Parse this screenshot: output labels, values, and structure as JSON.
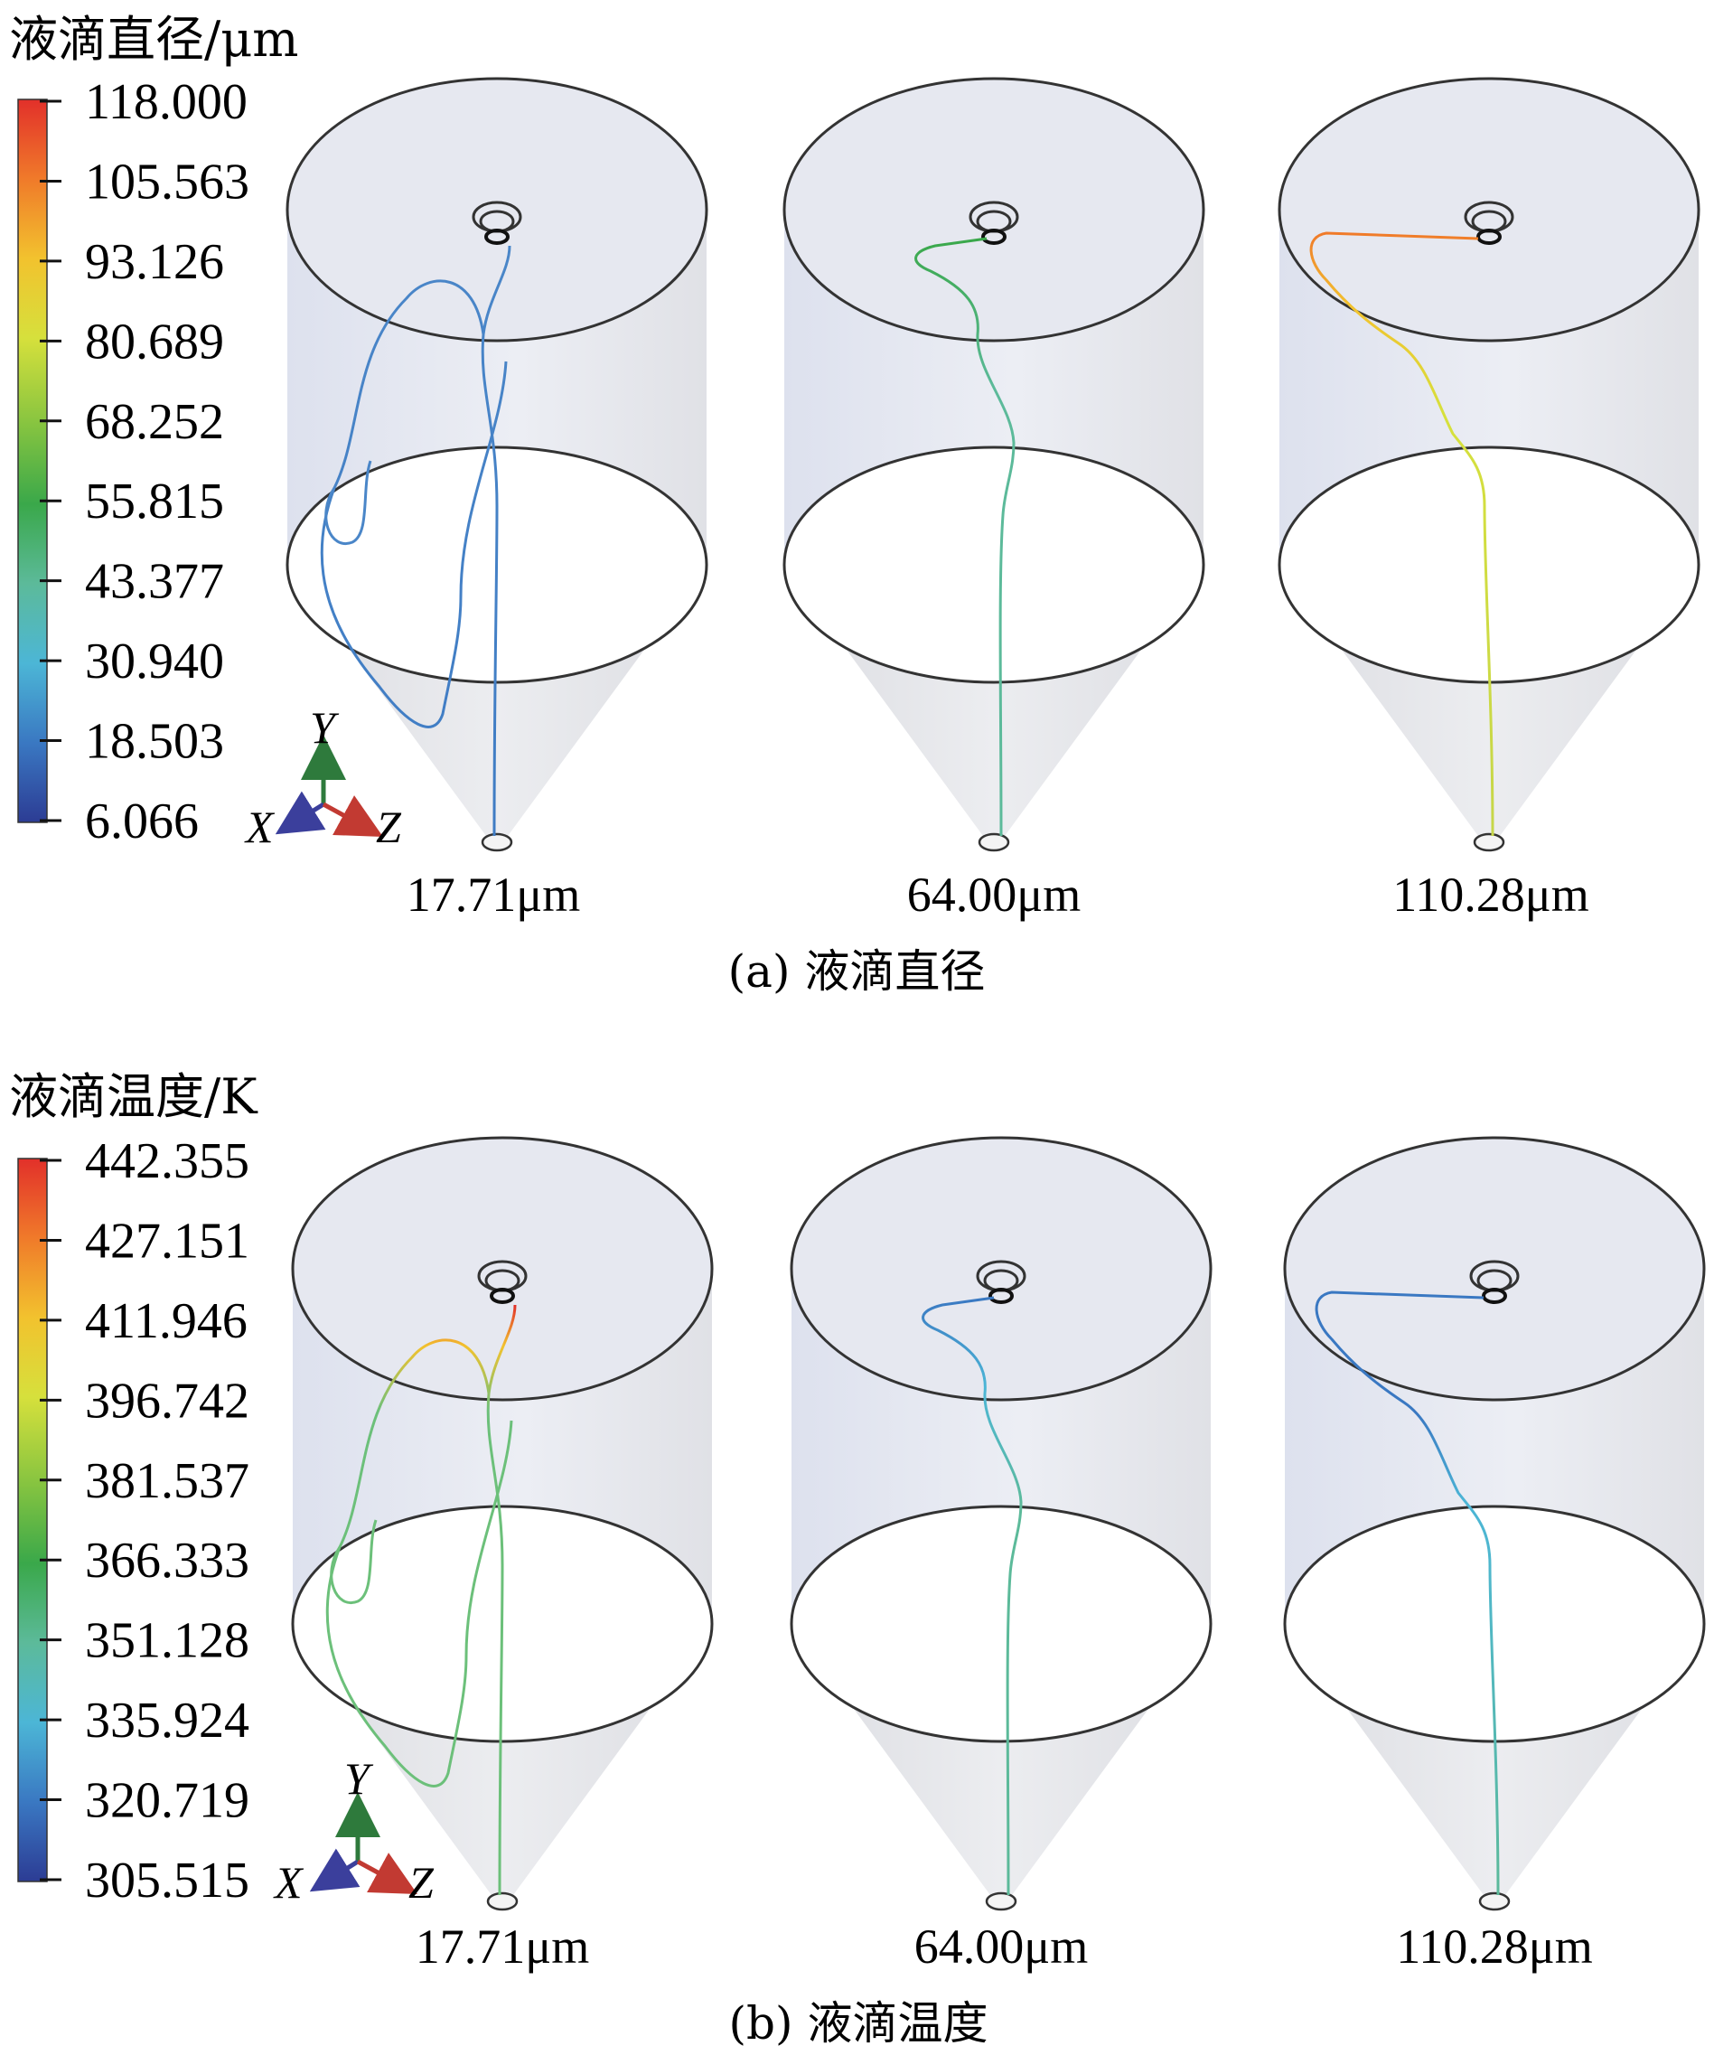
{
  "panels": [
    {
      "id": "a",
      "legend_title": "液滴直径/μm",
      "colorbar_ticks": [
        "118.000",
        "105.563",
        "93.126",
        "80.689",
        "68.252",
        "55.815",
        "43.377",
        "30.940",
        "18.503",
        "6.066"
      ],
      "caption": "(a) 液滴直径",
      "axes": {
        "x": "X",
        "y": "Y",
        "z": "Z"
      },
      "dryers": [
        {
          "diameter_label": "17.71μm",
          "track_color": "#4a86c8"
        },
        {
          "diameter_label": "64.00μm",
          "track_color": "#5cba9a"
        },
        {
          "diameter_label": "110.28μm",
          "track_color": "#c6d64a"
        }
      ]
    },
    {
      "id": "b",
      "legend_title": "液滴温度/K",
      "colorbar_ticks": [
        "442.355",
        "427.151",
        "411.946",
        "396.742",
        "381.537",
        "366.333",
        "351.128",
        "335.924",
        "320.719",
        "305.515"
      ],
      "caption": "(b) 液滴温度",
      "axes": {
        "x": "X",
        "y": "Y",
        "z": "Z"
      },
      "dryers": [
        {
          "diameter_label": "17.71μm",
          "track_color": "#6cc07a"
        },
        {
          "diameter_label": "64.00μm",
          "track_color": "#5cba9a"
        },
        {
          "diameter_label": "110.28μm",
          "track_color": "#5cbcc8"
        }
      ]
    }
  ],
  "colors": {
    "colormap": [
      "#e2302a",
      "#f07a2a",
      "#f2c22e",
      "#d6e03c",
      "#86c440",
      "#3aa84a",
      "#5cba9a",
      "#4cb6d6",
      "#3a78c2",
      "#2c3c94"
    ],
    "dryer_outline": "#333333",
    "dryer_fill": "#e7e9f0"
  }
}
